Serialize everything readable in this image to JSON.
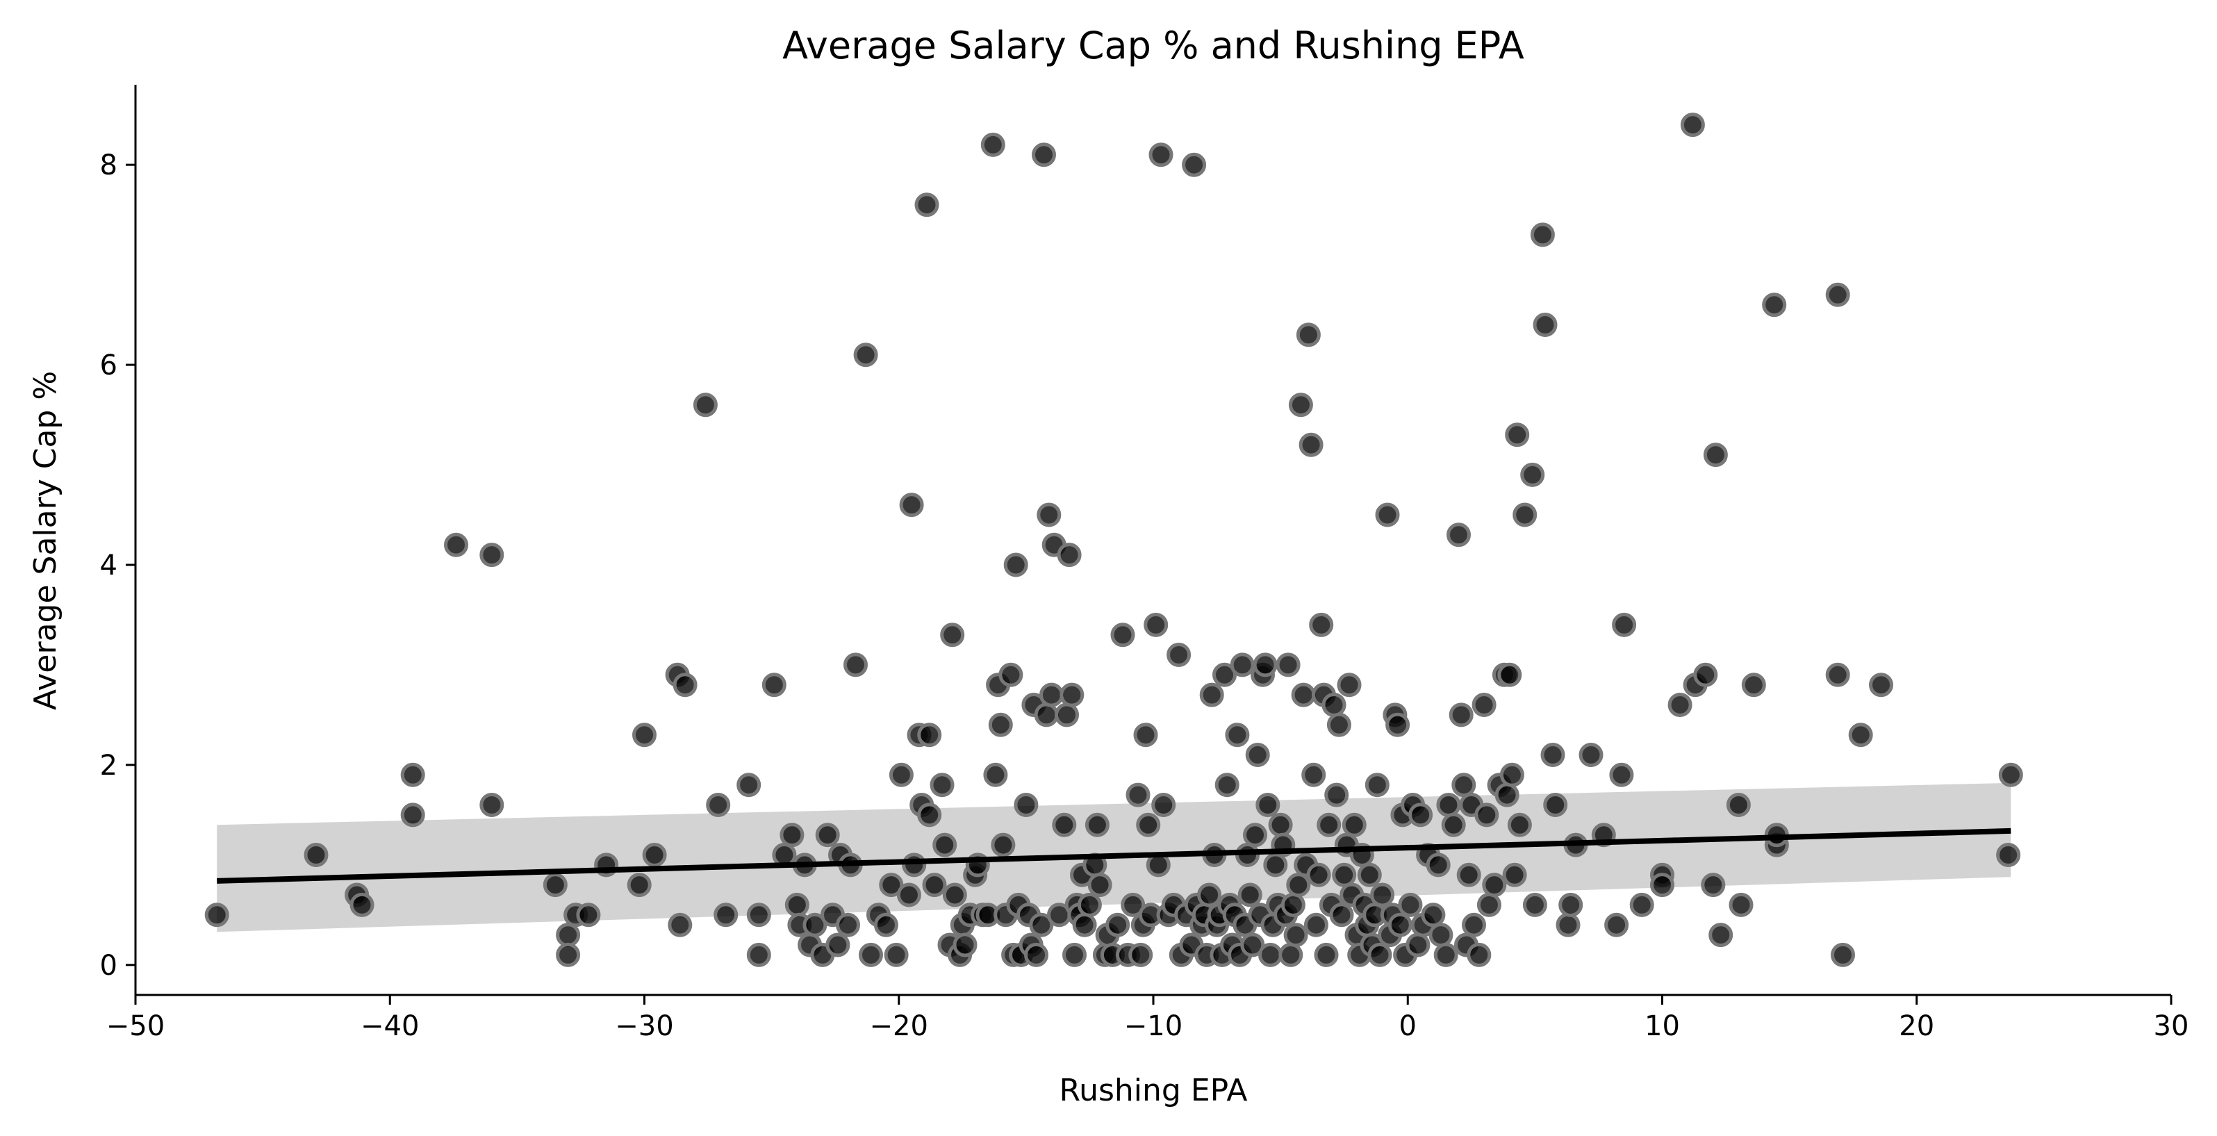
{
  "chart_data": {
    "type": "scatter",
    "title": "Average Salary Cap % and Rushing EPA",
    "xlabel": "Rushing EPA",
    "ylabel": "Average Salary Cap %",
    "xlim": [
      -50,
      30
    ],
    "ylim": [
      -0.3,
      8.8
    ],
    "xticks": [
      -50,
      -40,
      -30,
      -20,
      -10,
      0,
      10,
      20,
      30
    ],
    "xtick_labels": [
      "−50",
      "−40",
      "−30",
      "−20",
      "−10",
      "0",
      "10",
      "20",
      "30"
    ],
    "yticks": [
      0,
      2,
      4,
      6,
      8
    ],
    "ytick_labels": [
      "0",
      "2",
      "4",
      "6",
      "8"
    ],
    "grid": false,
    "legend": "none",
    "point_color": "#000000",
    "point_edge_color": "#777777",
    "regression": {
      "x": [
        -46.8,
        23.7
      ],
      "y": [
        0.84,
        1.34
      ],
      "ci_lower": [
        0.33,
        0.88
      ],
      "ci_upper": [
        1.4,
        1.82
      ],
      "line_color": "#000000",
      "band_color": "#d3d3d3"
    },
    "points": [
      [
        -46.8,
        0.5
      ],
      [
        -42.9,
        1.1
      ],
      [
        -41.3,
        0.7
      ],
      [
        -41.1,
        0.6
      ],
      [
        -39.1,
        1.9
      ],
      [
        -39.1,
        1.5
      ],
      [
        -37.4,
        4.2
      ],
      [
        -36.0,
        4.1
      ],
      [
        -36.0,
        1.6
      ],
      [
        -33.5,
        0.8
      ],
      [
        -33.0,
        0.3
      ],
      [
        -33.0,
        0.1
      ],
      [
        -32.7,
        0.5
      ],
      [
        -32.2,
        0.5
      ],
      [
        -31.5,
        1.0
      ],
      [
        -30.2,
        0.8
      ],
      [
        -30.0,
        2.3
      ],
      [
        -29.6,
        1.1
      ],
      [
        -28.7,
        2.9
      ],
      [
        -28.6,
        0.4
      ],
      [
        -28.4,
        2.8
      ],
      [
        -27.6,
        5.6
      ],
      [
        -27.1,
        1.6
      ],
      [
        -26.8,
        0.5
      ],
      [
        -25.9,
        1.8
      ],
      [
        -25.5,
        0.5
      ],
      [
        -25.5,
        0.1
      ],
      [
        -24.9,
        2.8
      ],
      [
        -24.5,
        1.1
      ],
      [
        -24.2,
        1.3
      ],
      [
        -24.0,
        0.6
      ],
      [
        -23.9,
        0.4
      ],
      [
        -23.7,
        1.0
      ],
      [
        -23.5,
        0.2
      ],
      [
        -23.3,
        0.4
      ],
      [
        -23.0,
        0.1
      ],
      [
        -22.8,
        1.3
      ],
      [
        -22.6,
        0.5
      ],
      [
        -22.4,
        0.2
      ],
      [
        -22.3,
        1.1
      ],
      [
        -22.0,
        0.4
      ],
      [
        -21.9,
        1.0
      ],
      [
        -21.7,
        3.0
      ],
      [
        -21.3,
        6.1
      ],
      [
        -21.1,
        0.1
      ],
      [
        -20.8,
        0.5
      ],
      [
        -20.5,
        0.4
      ],
      [
        -20.3,
        0.8
      ],
      [
        -20.1,
        0.1
      ],
      [
        -19.9,
        1.9
      ],
      [
        -19.6,
        0.7
      ],
      [
        -19.5,
        4.6
      ],
      [
        -19.4,
        1.0
      ],
      [
        -19.2,
        2.3
      ],
      [
        -19.1,
        1.6
      ],
      [
        -18.9,
        7.6
      ],
      [
        -18.8,
        2.3
      ],
      [
        -18.8,
        1.5
      ],
      [
        -18.6,
        0.8
      ],
      [
        -18.3,
        1.8
      ],
      [
        -18.2,
        1.2
      ],
      [
        -18.0,
        0.2
      ],
      [
        -17.9,
        3.3
      ],
      [
        -17.8,
        0.7
      ],
      [
        -17.6,
        0.1
      ],
      [
        -17.5,
        0.4
      ],
      [
        -17.4,
        0.2
      ],
      [
        -17.2,
        0.5
      ],
      [
        -17.0,
        0.9
      ],
      [
        -16.9,
        1.0
      ],
      [
        -16.7,
        0.5
      ],
      [
        -16.5,
        0.5
      ],
      [
        -16.3,
        8.2
      ],
      [
        -16.2,
        1.9
      ],
      [
        -16.1,
        2.8
      ],
      [
        -16.0,
        2.4
      ],
      [
        -15.9,
        1.2
      ],
      [
        -15.8,
        0.5
      ],
      [
        -15.6,
        2.9
      ],
      [
        -15.5,
        0.1
      ],
      [
        -15.4,
        4.0
      ],
      [
        -15.3,
        0.6
      ],
      [
        -15.2,
        0.1
      ],
      [
        -15.0,
        1.6
      ],
      [
        -14.9,
        0.5
      ],
      [
        -14.8,
        0.2
      ],
      [
        -14.7,
        2.6
      ],
      [
        -14.6,
        0.1
      ],
      [
        -14.4,
        0.4
      ],
      [
        -14.3,
        8.1
      ],
      [
        -14.2,
        2.5
      ],
      [
        -14.1,
        4.5
      ],
      [
        -14.0,
        2.7
      ],
      [
        -13.9,
        4.2
      ],
      [
        -13.7,
        0.5
      ],
      [
        -13.5,
        1.4
      ],
      [
        -13.4,
        2.5
      ],
      [
        -13.3,
        4.1
      ],
      [
        -13.2,
        2.7
      ],
      [
        -13.1,
        0.1
      ],
      [
        -13.0,
        0.6
      ],
      [
        -12.9,
        0.5
      ],
      [
        -12.8,
        0.9
      ],
      [
        -12.7,
        0.4
      ],
      [
        -12.5,
        0.6
      ],
      [
        -12.3,
        1.0
      ],
      [
        -12.2,
        1.4
      ],
      [
        -12.1,
        0.8
      ],
      [
        -11.9,
        0.1
      ],
      [
        -11.8,
        0.3
      ],
      [
        -11.6,
        0.1
      ],
      [
        -11.4,
        0.4
      ],
      [
        -11.2,
        3.3
      ],
      [
        -11.0,
        0.1
      ],
      [
        -10.8,
        0.6
      ],
      [
        -10.6,
        1.7
      ],
      [
        -10.5,
        0.1
      ],
      [
        -10.4,
        0.4
      ],
      [
        -10.3,
        2.3
      ],
      [
        -10.2,
        1.4
      ],
      [
        -10.1,
        0.5
      ],
      [
        -9.9,
        3.4
      ],
      [
        -9.8,
        1.0
      ],
      [
        -9.7,
        8.1
      ],
      [
        -9.6,
        1.6
      ],
      [
        -9.4,
        0.5
      ],
      [
        -9.2,
        0.6
      ],
      [
        -9.0,
        3.1
      ],
      [
        -8.9,
        0.1
      ],
      [
        -8.7,
        0.5
      ],
      [
        -8.5,
        0.2
      ],
      [
        -8.4,
        8.0
      ],
      [
        -8.3,
        0.6
      ],
      [
        -8.1,
        0.4
      ],
      [
        -8.0,
        0.5
      ],
      [
        -7.9,
        0.1
      ],
      [
        -7.8,
        0.7
      ],
      [
        -7.7,
        2.7
      ],
      [
        -7.6,
        1.1
      ],
      [
        -7.5,
        0.4
      ],
      [
        -7.4,
        0.5
      ],
      [
        -7.3,
        0.1
      ],
      [
        -7.2,
        2.9
      ],
      [
        -7.1,
        1.8
      ],
      [
        -7.0,
        0.6
      ],
      [
        -6.9,
        0.2
      ],
      [
        -6.8,
        0.5
      ],
      [
        -6.7,
        2.3
      ],
      [
        -6.6,
        0.1
      ],
      [
        -6.5,
        3.0
      ],
      [
        -6.4,
        0.4
      ],
      [
        -6.3,
        1.1
      ],
      [
        -6.2,
        0.7
      ],
      [
        -6.1,
        0.2
      ],
      [
        -6.0,
        1.3
      ],
      [
        -5.9,
        2.1
      ],
      [
        -5.8,
        0.5
      ],
      [
        -5.7,
        2.9
      ],
      [
        -5.6,
        3.0
      ],
      [
        -5.5,
        1.6
      ],
      [
        -5.4,
        0.1
      ],
      [
        -5.3,
        0.4
      ],
      [
        -5.2,
        1.0
      ],
      [
        -5.1,
        0.6
      ],
      [
        -5.0,
        1.4
      ],
      [
        -4.9,
        1.2
      ],
      [
        -4.8,
        0.5
      ],
      [
        -4.7,
        3.0
      ],
      [
        -4.6,
        0.1
      ],
      [
        -4.5,
        0.6
      ],
      [
        -4.4,
        0.3
      ],
      [
        -4.3,
        0.8
      ],
      [
        -4.2,
        5.6
      ],
      [
        -4.1,
        2.7
      ],
      [
        -4.0,
        1.0
      ],
      [
        -3.9,
        6.3
      ],
      [
        -3.8,
        5.2
      ],
      [
        -3.7,
        1.9
      ],
      [
        -3.6,
        0.4
      ],
      [
        -3.5,
        0.9
      ],
      [
        -3.4,
        3.4
      ],
      [
        -3.3,
        2.7
      ],
      [
        -3.2,
        0.1
      ],
      [
        -3.1,
        1.4
      ],
      [
        -3.0,
        0.6
      ],
      [
        -2.9,
        2.6
      ],
      [
        -2.8,
        1.7
      ],
      [
        -2.7,
        2.4
      ],
      [
        -2.6,
        0.5
      ],
      [
        -2.5,
        0.9
      ],
      [
        -2.4,
        1.2
      ],
      [
        -2.3,
        2.8
      ],
      [
        -2.2,
        0.7
      ],
      [
        -2.1,
        1.4
      ],
      [
        -2.0,
        0.3
      ],
      [
        -1.9,
        0.1
      ],
      [
        -1.8,
        1.1
      ],
      [
        -1.7,
        0.6
      ],
      [
        -1.6,
        0.4
      ],
      [
        -1.5,
        0.9
      ],
      [
        -1.4,
        0.2
      ],
      [
        -1.3,
        0.5
      ],
      [
        -1.2,
        1.8
      ],
      [
        -1.1,
        0.1
      ],
      [
        -1.0,
        0.7
      ],
      [
        -0.8,
        4.5
      ],
      [
        -0.7,
        0.3
      ],
      [
        -0.6,
        0.5
      ],
      [
        -0.5,
        2.5
      ],
      [
        -0.4,
        2.4
      ],
      [
        -0.3,
        0.4
      ],
      [
        -0.2,
        1.5
      ],
      [
        -0.1,
        0.1
      ],
      [
        0.1,
        0.6
      ],
      [
        0.2,
        1.6
      ],
      [
        0.4,
        0.2
      ],
      [
        0.5,
        1.5
      ],
      [
        0.6,
        0.4
      ],
      [
        0.8,
        1.1
      ],
      [
        1.0,
        0.5
      ],
      [
        1.2,
        1.0
      ],
      [
        1.3,
        0.3
      ],
      [
        1.5,
        0.1
      ],
      [
        1.6,
        1.6
      ],
      [
        1.8,
        1.4
      ],
      [
        2.0,
        4.3
      ],
      [
        2.1,
        2.5
      ],
      [
        2.2,
        1.8
      ],
      [
        2.3,
        0.2
      ],
      [
        2.4,
        0.9
      ],
      [
        2.5,
        1.6
      ],
      [
        2.6,
        0.4
      ],
      [
        2.8,
        0.1
      ],
      [
        3.0,
        2.6
      ],
      [
        3.1,
        1.5
      ],
      [
        3.2,
        0.6
      ],
      [
        3.4,
        0.8
      ],
      [
        3.6,
        1.8
      ],
      [
        3.8,
        2.9
      ],
      [
        3.9,
        1.7
      ],
      [
        4.0,
        2.9
      ],
      [
        4.1,
        1.9
      ],
      [
        4.2,
        0.9
      ],
      [
        4.3,
        5.3
      ],
      [
        4.4,
        1.4
      ],
      [
        4.6,
        4.5
      ],
      [
        4.9,
        4.9
      ],
      [
        5.0,
        0.6
      ],
      [
        5.3,
        7.3
      ],
      [
        5.4,
        6.4
      ],
      [
        5.7,
        2.1
      ],
      [
        5.8,
        1.6
      ],
      [
        6.3,
        0.4
      ],
      [
        6.4,
        0.6
      ],
      [
        6.6,
        1.2
      ],
      [
        7.2,
        2.1
      ],
      [
        7.7,
        1.3
      ],
      [
        8.2,
        0.4
      ],
      [
        8.4,
        1.9
      ],
      [
        8.5,
        3.4
      ],
      [
        9.2,
        0.6
      ],
      [
        10.0,
        0.9
      ],
      [
        10.0,
        0.8
      ],
      [
        10.7,
        2.6
      ],
      [
        11.2,
        8.4
      ],
      [
        11.3,
        2.8
      ],
      [
        11.7,
        2.9
      ],
      [
        12.0,
        0.8
      ],
      [
        12.1,
        5.1
      ],
      [
        12.3,
        0.3
      ],
      [
        13.0,
        1.6
      ],
      [
        13.1,
        0.6
      ],
      [
        13.6,
        2.8
      ],
      [
        14.4,
        6.6
      ],
      [
        14.5,
        1.2
      ],
      [
        14.5,
        1.3
      ],
      [
        16.9,
        6.7
      ],
      [
        16.9,
        2.9
      ],
      [
        17.1,
        0.1
      ],
      [
        17.8,
        2.3
      ],
      [
        18.6,
        2.8
      ],
      [
        23.6,
        1.1
      ],
      [
        23.7,
        1.9
      ]
    ]
  }
}
